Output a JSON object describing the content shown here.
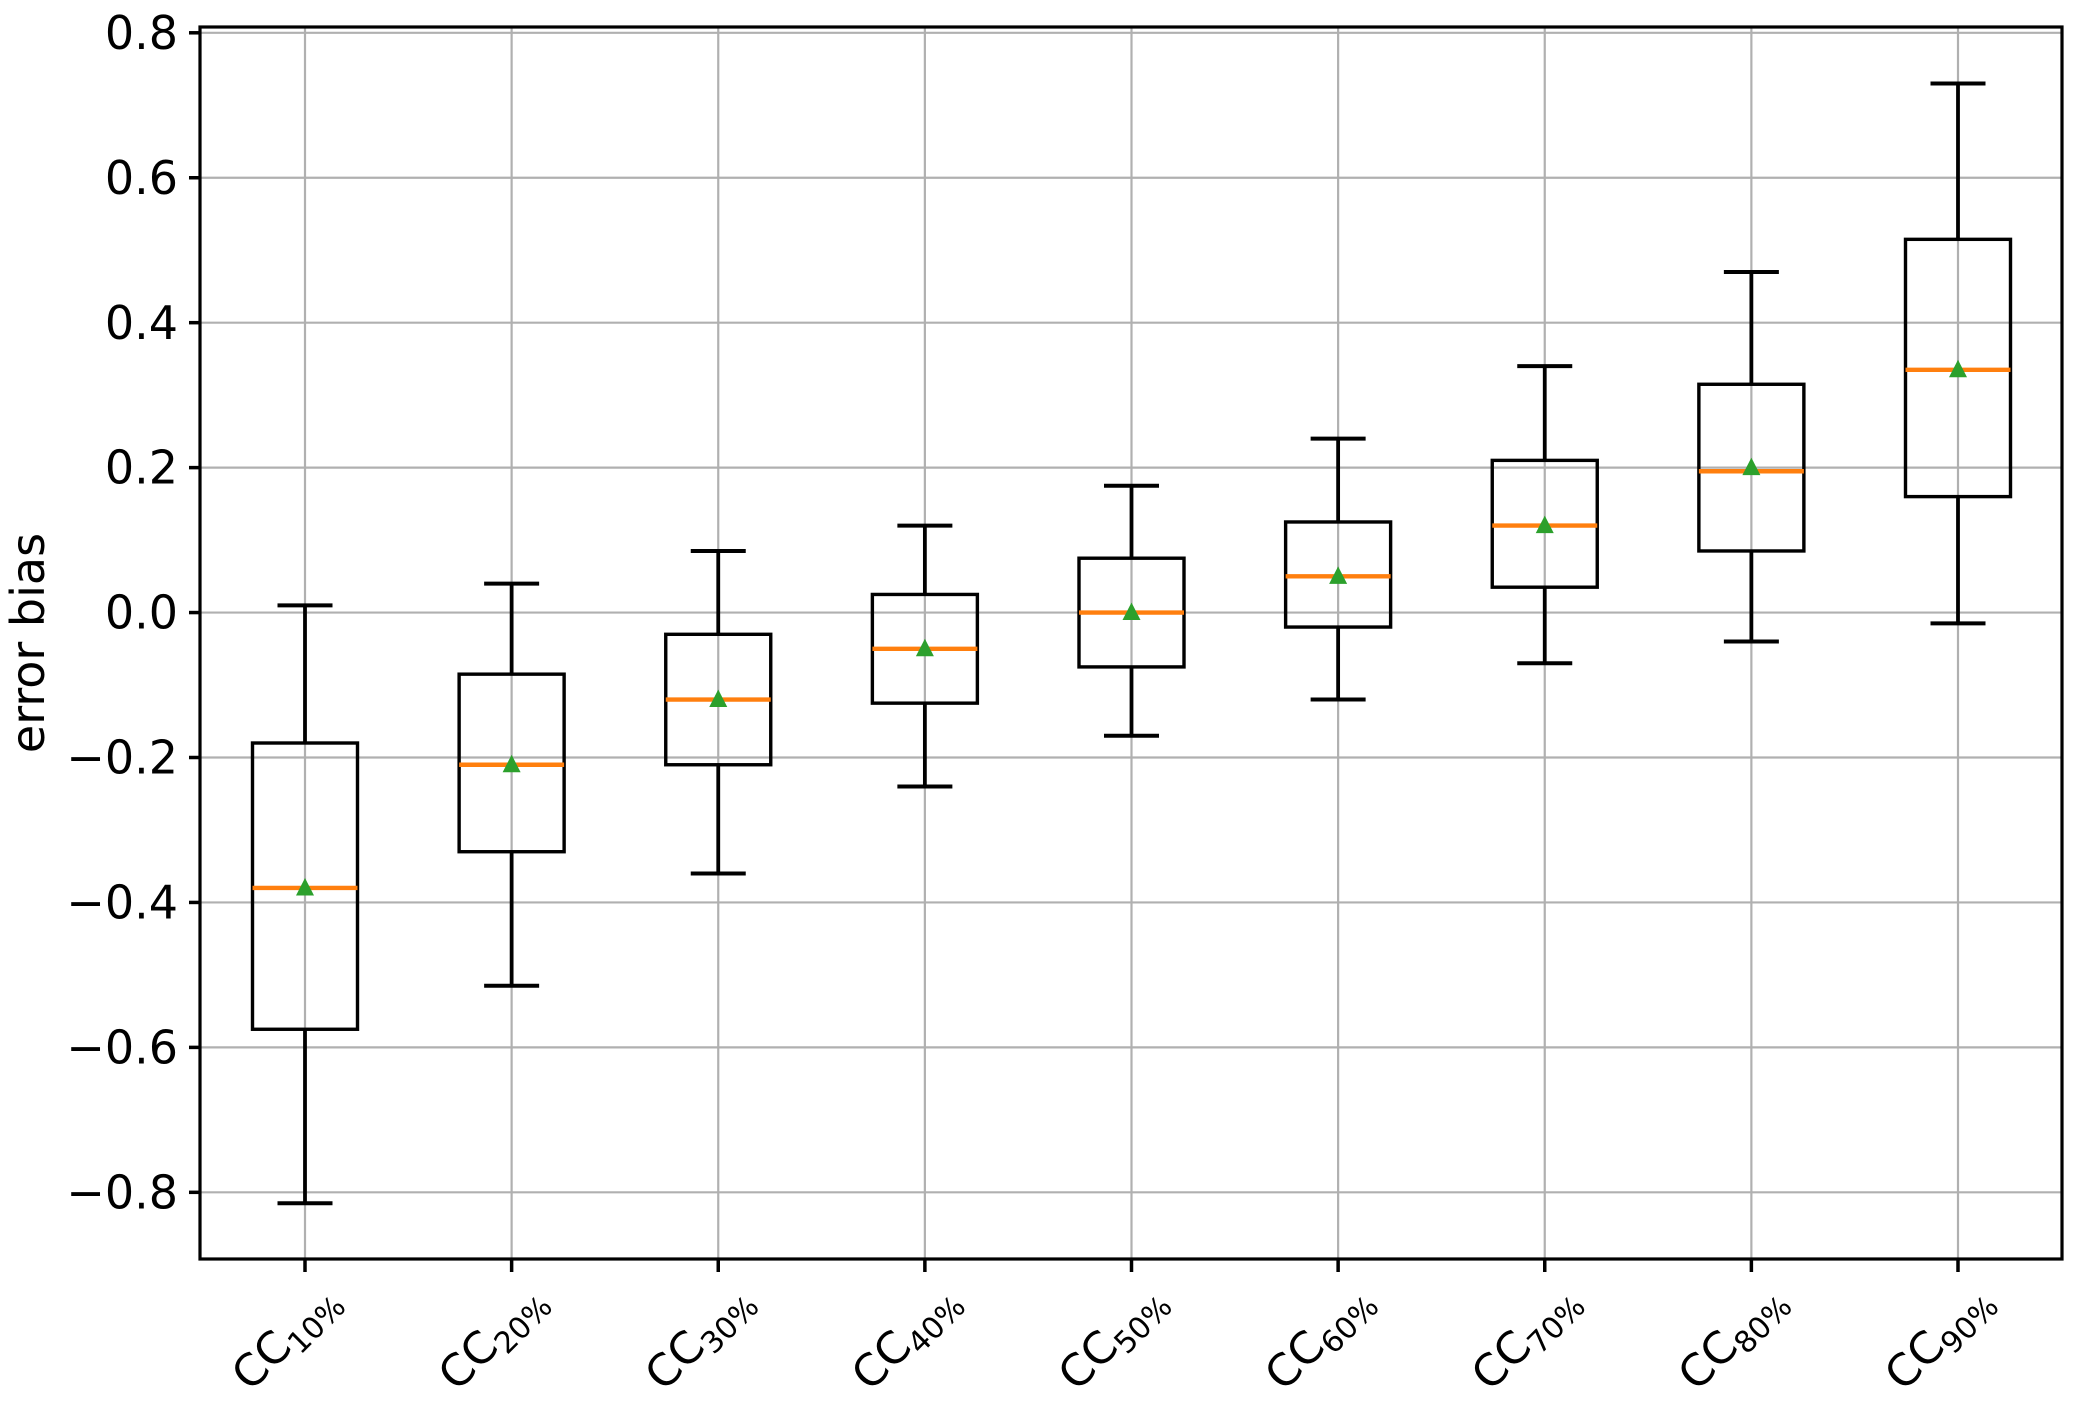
{
  "figure": {
    "background": "#ffffff"
  },
  "chart_data": {
    "type": "boxplot",
    "title": "",
    "xlabel": "",
    "ylabel": "error bias",
    "grid": true,
    "ylim": [
      -0.892,
      0.808
    ],
    "yticks": [
      0.8,
      0.6,
      0.4,
      0.2,
      0.0,
      -0.2,
      -0.4,
      -0.6,
      -0.8
    ],
    "ytick_labels": [
      "0.8",
      "0.6",
      "0.4",
      "0.2",
      "0.0",
      "−0.2",
      "−0.4",
      "−0.6",
      "−0.8"
    ],
    "x_tick_rotation_deg": 45,
    "categories": [
      {
        "base": "CC",
        "sub": "10%"
      },
      {
        "base": "CC",
        "sub": "20%"
      },
      {
        "base": "CC",
        "sub": "30%"
      },
      {
        "base": "CC",
        "sub": "40%"
      },
      {
        "base": "CC",
        "sub": "50%"
      },
      {
        "base": "CC",
        "sub": "60%"
      },
      {
        "base": "CC",
        "sub": "70%"
      },
      {
        "base": "CC",
        "sub": "80%"
      },
      {
        "base": "CC",
        "sub": "90%"
      }
    ],
    "series": [
      {
        "label": "CC10%",
        "whisker_low": -0.815,
        "q1": -0.575,
        "median": -0.38,
        "mean": -0.38,
        "q3": -0.18,
        "whisker_high": 0.01
      },
      {
        "label": "CC20%",
        "whisker_low": -0.515,
        "q1": -0.33,
        "median": -0.21,
        "mean": -0.21,
        "q3": -0.085,
        "whisker_high": 0.04
      },
      {
        "label": "CC30%",
        "whisker_low": -0.36,
        "q1": -0.21,
        "median": -0.12,
        "mean": -0.12,
        "q3": -0.03,
        "whisker_high": 0.085
      },
      {
        "label": "CC40%",
        "whisker_low": -0.24,
        "q1": -0.125,
        "median": -0.05,
        "mean": -0.05,
        "q3": 0.025,
        "whisker_high": 0.12
      },
      {
        "label": "CC50%",
        "whisker_low": -0.17,
        "q1": -0.075,
        "median": 0.0,
        "mean": 0.0,
        "q3": 0.075,
        "whisker_high": 0.175
      },
      {
        "label": "CC60%",
        "whisker_low": -0.12,
        "q1": -0.02,
        "median": 0.05,
        "mean": 0.05,
        "q3": 0.125,
        "whisker_high": 0.24
      },
      {
        "label": "CC70%",
        "whisker_low": -0.07,
        "q1": 0.035,
        "median": 0.12,
        "mean": 0.12,
        "q3": 0.21,
        "whisker_high": 0.34
      },
      {
        "label": "CC80%",
        "whisker_low": -0.04,
        "q1": 0.085,
        "median": 0.195,
        "mean": 0.2,
        "q3": 0.315,
        "whisker_high": 0.47
      },
      {
        "label": "CC90%",
        "whisker_low": -0.015,
        "q1": 0.16,
        "median": 0.335,
        "mean": 0.335,
        "q3": 0.515,
        "whisker_high": 0.73
      }
    ],
    "colors": {
      "box_line": "#000000",
      "whisker_line": "#000000",
      "median_line": "#ff7f0e",
      "mean_marker": "#2ca02c",
      "grid_line": "#b0b0b0",
      "spine": "#000000",
      "text": "#000000",
      "background": "#ffffff"
    },
    "legend": null
  }
}
